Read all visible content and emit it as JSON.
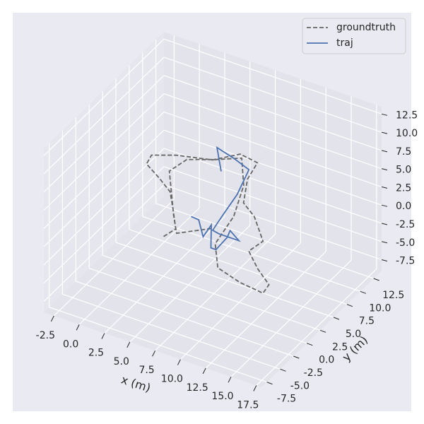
{
  "chart_data": {
    "type": "line3d",
    "xlabel": "x (m)",
    "ylabel": "y (m)",
    "xlim": [
      -3.5,
      18
    ],
    "ylim": [
      -8.5,
      14
    ],
    "zlim": [
      -9,
      13.5
    ],
    "xticks": [
      -2.5,
      {
        "value": 0,
        "label": "0.0"
      },
      2.5,
      {
        "value": 5,
        "label": "5.0"
      },
      7.5,
      {
        "value": 10,
        "label": "10.0"
      },
      12.5,
      {
        "value": 15,
        "label": "15.0"
      },
      17.5
    ],
    "yticks": [
      -7.5,
      {
        "value": -5,
        "label": "-5.0"
      },
      -2.5,
      {
        "value": 0,
        "label": "0.0"
      },
      2.5,
      {
        "value": 5,
        "label": "5.0"
      },
      7.5,
      {
        "value": 10,
        "label": "10.0"
      },
      12.5
    ],
    "zticks": [
      -7.5,
      {
        "value": -5,
        "label": "-5.0"
      },
      -2.5,
      {
        "value": 0,
        "label": "0.0"
      },
      2.5,
      {
        "value": 5,
        "label": "5.0"
      },
      7.5,
      {
        "value": 10,
        "label": "10.0"
      },
      12.5
    ],
    "grid": true,
    "legend": "upper right",
    "series": [
      {
        "name": "groundtruth",
        "color": "#666666",
        "dashed": true,
        "x": [
          5.7,
          6.0,
          4.3,
          2.8,
          1.0,
          -1.0,
          -1.3,
          0.5,
          3.5,
          5.1,
          7.0,
          7.5,
          9.0,
          10.8,
          13.3,
          13.0,
          15.0,
          17.0,
          17.2,
          14.7,
          12.0,
          10.0,
          9.3,
          7.7,
          5.5,
          3.7,
          1.6,
          1.2,
          4.9,
          6.4,
          8.6
        ],
        "y": [
          -3.5,
          -1.8,
          0.9,
          3.2,
          4.6,
          6.0,
          7.5,
          8.7,
          9.8,
          12.0,
          11.6,
          8.8,
          5.2,
          3.8,
          0.7,
          -1.4,
          -3.5,
          -5.2,
          -6.7,
          -6.3,
          -5.3,
          -2.0,
          2.8,
          7.7,
          11.5,
          10.0,
          8.6,
          6.1,
          -0.1,
          -2.4,
          0.0
        ],
        "z": [
          2.25,
          2.25,
          2.25,
          2.25,
          2.25,
          2.25,
          2.25,
          2.25,
          2.25,
          2.25,
          2.25,
          2.25,
          2.25,
          2.25,
          2.25,
          2.25,
          2.25,
          2.25,
          2.25,
          2.25,
          2.25,
          2.25,
          2.25,
          2.25,
          2.25,
          2.25,
          2.25,
          2.25,
          2.25,
          2.25,
          2.25
        ]
      },
      {
        "name": "traj",
        "color": "#4c72b0",
        "dashed": false,
        "x": [
          6.2,
          7.0,
          8.6,
          8.3,
          10.0,
          10.5,
          10.4,
          10.1,
          11.5,
          9.5,
          8.8,
          8.4,
          7.9,
          6.9,
          4.9,
          2.9,
          5.0
        ],
        "y": [
          0.7,
          0.6,
          -1.6,
          0.5,
          -2.8,
          -2.8,
          -0.5,
          0.6,
          -0.4,
          -0.4,
          -0.2,
          2.5,
          6.1,
          10.2,
          11.1,
          11.8,
          8.6
        ],
        "z": [
          2.25,
          2.25,
          2.25,
          2.25,
          2.25,
          2.25,
          2.25,
          2.25,
          2.25,
          2.25,
          2.25,
          2.25,
          2.25,
          2.25,
          2.25,
          2.25,
          2.25
        ]
      }
    ]
  }
}
